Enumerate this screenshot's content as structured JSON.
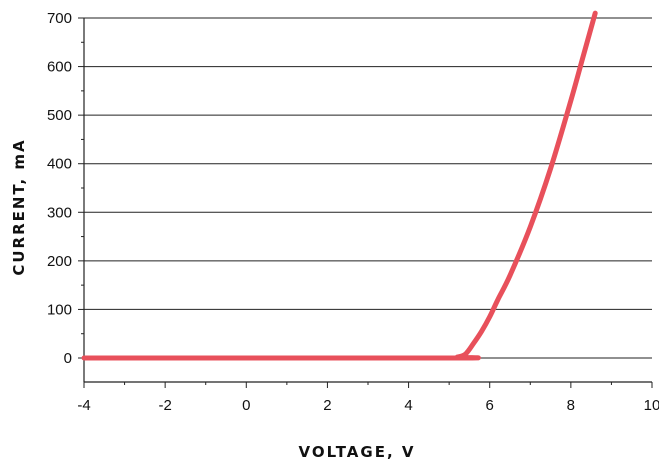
{
  "chart_data": {
    "type": "line",
    "title": "",
    "xlabel": "VOLTAGE, V",
    "ylabel": "CURRENT, mA",
    "xlim": [
      -4,
      10
    ],
    "ylim": [
      0,
      700
    ],
    "x_ticks": [
      -4,
      -2,
      0,
      2,
      4,
      6,
      8,
      10
    ],
    "x_tick_labels": [
      "-4",
      "-2",
      "0",
      "2",
      "4",
      "6",
      "8",
      "10"
    ],
    "y_ticks": [
      0,
      100,
      200,
      300,
      400,
      500,
      600,
      700
    ],
    "y_tick_labels": [
      "0",
      "100",
      "200",
      "300",
      "400",
      "500",
      "600",
      "700"
    ],
    "grid": "horizontal",
    "series": [
      {
        "color": "#e8505b",
        "x": [
          -4,
          5,
          5.2,
          5.4,
          5.6,
          5.8,
          6.0,
          6.2,
          6.5,
          7.0,
          7.5,
          8.0,
          8.3,
          8.6
        ],
        "y": [
          0,
          0,
          2,
          8,
          30,
          55,
          85,
          120,
          170,
          270,
          390,
          530,
          620,
          710
        ]
      }
    ]
  }
}
